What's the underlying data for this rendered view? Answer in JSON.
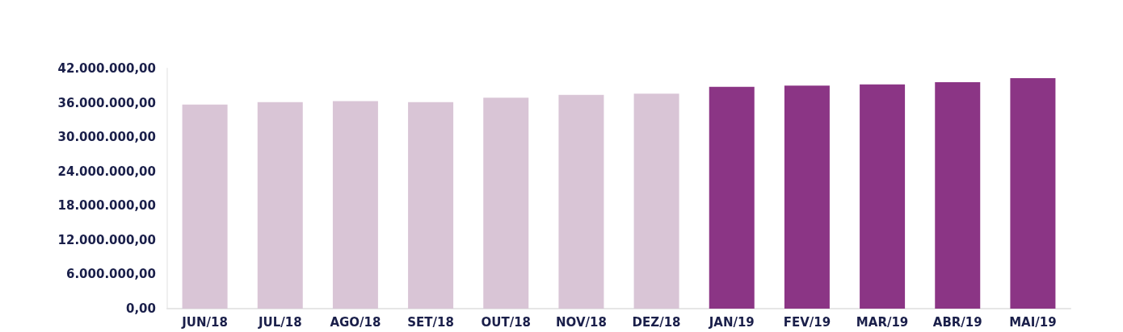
{
  "chart_data": {
    "type": "bar",
    "categories": [
      "JUN/18",
      "JUL/18",
      "AGO/18",
      "SET/18",
      "OUT/18",
      "NOV/18",
      "DEZ/18",
      "JAN/19",
      "FEV/19",
      "MAR/19",
      "ABR/19",
      "MAI/19"
    ],
    "values": [
      35700000,
      36100000,
      36300000,
      36100000,
      36900000,
      37400000,
      37600000,
      38800000,
      39000000,
      39200000,
      39600000,
      40300000
    ],
    "colors": [
      "#d9c5d6",
      "#d9c5d6",
      "#d9c5d6",
      "#d9c5d6",
      "#d9c5d6",
      "#d9c5d6",
      "#d9c5d6",
      "#8b3585",
      "#8b3585",
      "#8b3585",
      "#8b3585",
      "#8b3585"
    ],
    "ylim": [
      0,
      42000000
    ],
    "yticks": [
      {
        "value": 0,
        "label": "0,00"
      },
      {
        "value": 6000000,
        "label": "6.000.000,00"
      },
      {
        "value": 12000000,
        "label": "12.000.000,00"
      },
      {
        "value": 18000000,
        "label": "18.000.000,00"
      },
      {
        "value": 24000000,
        "label": "24.000.000,00"
      },
      {
        "value": 30000000,
        "label": "30.000.000,00"
      },
      {
        "value": 36000000,
        "label": "36.000.000,00"
      },
      {
        "value": 42000000,
        "label": "42.000.000,00"
      }
    ],
    "grid": false
  }
}
